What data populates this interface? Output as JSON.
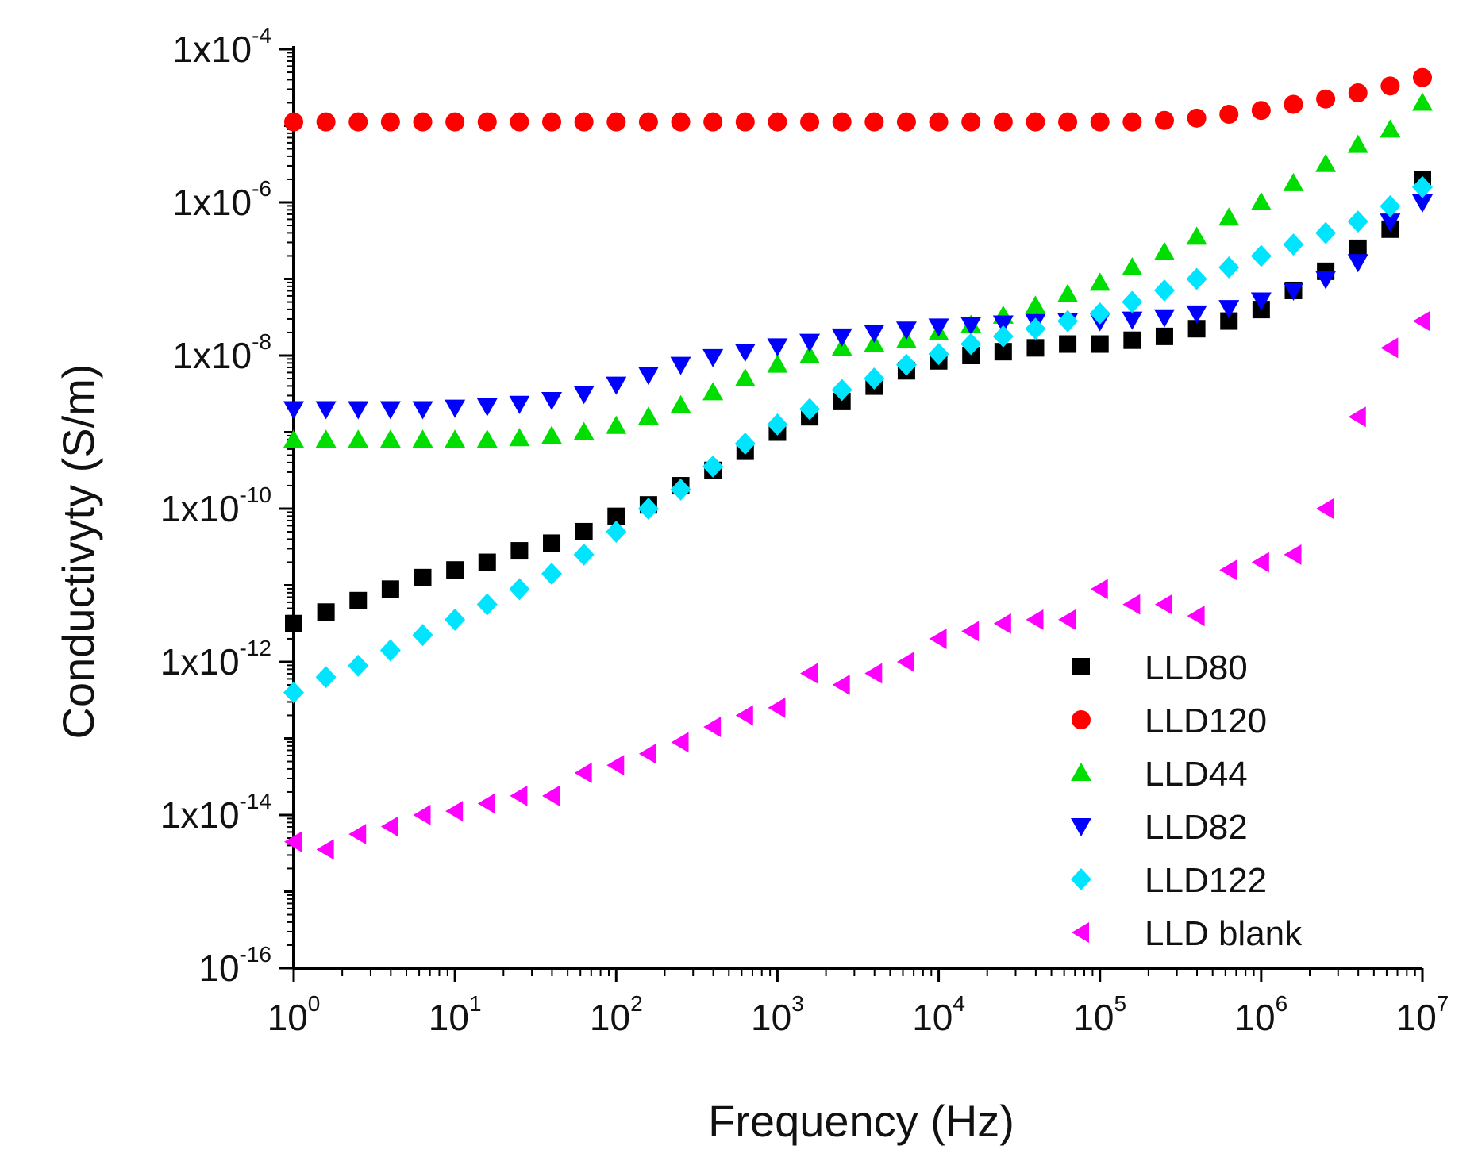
{
  "chart_data": {
    "type": "scatter",
    "title": "",
    "xlabel": "Frequency (Hz)",
    "ylabel": "Conductivyty (S/m)",
    "xscale": "log",
    "yscale": "log",
    "xlim": [
      1,
      10000000
    ],
    "ylim": [
      1e-16,
      0.0001
    ],
    "grid": false,
    "legend_position": "bottom-right",
    "x_ticks": [
      {
        "base": "10",
        "exp": "0"
      },
      {
        "base": "10",
        "exp": "1"
      },
      {
        "base": "10",
        "exp": "2"
      },
      {
        "base": "10",
        "exp": "3"
      },
      {
        "base": "10",
        "exp": "4"
      },
      {
        "base": "10",
        "exp": "5"
      },
      {
        "base": "10",
        "exp": "6"
      },
      {
        "base": "10",
        "exp": "7"
      }
    ],
    "y_ticks": [
      {
        "base": "10",
        "exp": "-16"
      },
      {
        "base": "1x10",
        "exp": "-14"
      },
      {
        "base": "1x10",
        "exp": "-12"
      },
      {
        "base": "1x10",
        "exp": "-10"
      },
      {
        "base": "1x10",
        "exp": "-8"
      },
      {
        "base": "1x10",
        "exp": "-6"
      },
      {
        "base": "1x10",
        "exp": "-4"
      }
    ],
    "series": [
      {
        "name": "LLD80",
        "marker": "square",
        "color": "#000000",
        "x_log10": [
          0,
          0.2,
          0.4,
          0.6,
          0.8,
          1.0,
          1.2,
          1.4,
          1.6,
          1.8,
          2.0,
          2.2,
          2.4,
          2.6,
          2.8,
          3.0,
          3.2,
          3.4,
          3.6,
          3.8,
          4.0,
          4.2,
          4.4,
          4.6,
          4.8,
          5.0,
          5.2,
          5.4,
          5.6,
          5.8,
          6.0,
          6.2,
          6.4,
          6.6,
          6.8,
          7.0
        ],
        "y_log10": [
          -11.5,
          -11.35,
          -11.2,
          -11.05,
          -10.9,
          -10.8,
          -10.7,
          -10.55,
          -10.45,
          -10.3,
          -10.1,
          -9.95,
          -9.7,
          -9.5,
          -9.25,
          -9.0,
          -8.8,
          -8.6,
          -8.4,
          -8.2,
          -8.07,
          -8.0,
          -7.95,
          -7.9,
          -7.85,
          -7.85,
          -7.8,
          -7.75,
          -7.65,
          -7.55,
          -7.4,
          -7.15,
          -6.9,
          -6.6,
          -6.35,
          -5.7
        ]
      },
      {
        "name": "LLD120",
        "marker": "circle",
        "color": "#ff0000",
        "x_log10": [
          0,
          0.2,
          0.4,
          0.6,
          0.8,
          1.0,
          1.2,
          1.4,
          1.6,
          1.8,
          2.0,
          2.2,
          2.4,
          2.6,
          2.8,
          3.0,
          3.2,
          3.4,
          3.6,
          3.8,
          4.0,
          4.2,
          4.4,
          4.6,
          4.8,
          5.0,
          5.2,
          5.4,
          5.6,
          5.8,
          6.0,
          6.2,
          6.4,
          6.6,
          6.8,
          7.0
        ],
        "y_log10": [
          -4.95,
          -4.95,
          -4.95,
          -4.95,
          -4.95,
          -4.95,
          -4.95,
          -4.95,
          -4.95,
          -4.95,
          -4.95,
          -4.95,
          -4.95,
          -4.95,
          -4.95,
          -4.95,
          -4.95,
          -4.95,
          -4.95,
          -4.95,
          -4.95,
          -4.95,
          -4.95,
          -4.95,
          -4.95,
          -4.95,
          -4.95,
          -4.93,
          -4.9,
          -4.85,
          -4.8,
          -4.72,
          -4.65,
          -4.57,
          -4.48,
          -4.37
        ]
      },
      {
        "name": "LLD44",
        "marker": "triangle-up",
        "color": "#00dd00",
        "x_log10": [
          0,
          0.2,
          0.4,
          0.6,
          0.8,
          1.0,
          1.2,
          1.4,
          1.6,
          1.8,
          2.0,
          2.2,
          2.4,
          2.6,
          2.8,
          3.0,
          3.2,
          3.4,
          3.6,
          3.8,
          4.0,
          4.2,
          4.4,
          4.6,
          4.8,
          5.0,
          5.2,
          5.4,
          5.6,
          5.8,
          6.0,
          6.2,
          6.4,
          6.6,
          6.8,
          7.0
        ],
        "y_log10": [
          -9.1,
          -9.1,
          -9.1,
          -9.1,
          -9.1,
          -9.1,
          -9.1,
          -9.08,
          -9.05,
          -9.0,
          -8.92,
          -8.8,
          -8.65,
          -8.48,
          -8.3,
          -8.12,
          -8.0,
          -7.9,
          -7.85,
          -7.8,
          -7.7,
          -7.6,
          -7.48,
          -7.35,
          -7.2,
          -7.05,
          -6.85,
          -6.65,
          -6.45,
          -6.2,
          -6.0,
          -5.75,
          -5.5,
          -5.25,
          -5.05,
          -4.7
        ]
      },
      {
        "name": "LLD82",
        "marker": "triangle-down",
        "color": "#0000ff",
        "x_log10": [
          0,
          0.2,
          0.4,
          0.6,
          0.8,
          1.0,
          1.2,
          1.4,
          1.6,
          1.8,
          2.0,
          2.2,
          2.4,
          2.6,
          2.8,
          3.0,
          3.2,
          3.4,
          3.6,
          3.8,
          4.0,
          4.2,
          4.4,
          4.6,
          4.8,
          5.0,
          5.2,
          5.4,
          5.6,
          5.8,
          6.0,
          6.2,
          6.4,
          6.6,
          6.8,
          7.0
        ],
        "y_log10": [
          -8.7,
          -8.7,
          -8.7,
          -8.7,
          -8.7,
          -8.68,
          -8.66,
          -8.63,
          -8.58,
          -8.5,
          -8.38,
          -8.25,
          -8.12,
          -8.02,
          -7.95,
          -7.88,
          -7.82,
          -7.75,
          -7.7,
          -7.66,
          -7.62,
          -7.6,
          -7.58,
          -7.56,
          -7.55,
          -7.55,
          -7.53,
          -7.5,
          -7.45,
          -7.38,
          -7.28,
          -7.15,
          -7.0,
          -6.78,
          -6.25,
          -6.0
        ]
      },
      {
        "name": "LLD122",
        "marker": "diamond",
        "color": "#00e5ff",
        "x_log10": [
          0,
          0.2,
          0.4,
          0.6,
          0.8,
          1.0,
          1.2,
          1.4,
          1.6,
          1.8,
          2.0,
          2.2,
          2.4,
          2.6,
          2.8,
          3.0,
          3.2,
          3.4,
          3.6,
          3.8,
          4.0,
          4.2,
          4.4,
          4.6,
          4.8,
          5.0,
          5.2,
          5.4,
          5.6,
          5.8,
          6.0,
          6.2,
          6.4,
          6.6,
          6.8,
          7.0
        ],
        "y_log10": [
          -12.4,
          -12.2,
          -12.05,
          -11.85,
          -11.65,
          -11.45,
          -11.25,
          -11.05,
          -10.85,
          -10.6,
          -10.3,
          -10.0,
          -9.75,
          -9.45,
          -9.15,
          -8.9,
          -8.7,
          -8.45,
          -8.3,
          -8.12,
          -7.98,
          -7.85,
          -7.75,
          -7.65,
          -7.55,
          -7.45,
          -7.3,
          -7.15,
          -7.0,
          -6.85,
          -6.7,
          -6.55,
          -6.4,
          -6.25,
          -6.05,
          -5.8
        ]
      },
      {
        "name": "LLD blank",
        "marker": "triangle-left",
        "color": "#ff00ff",
        "x_log10": [
          0,
          0.2,
          0.4,
          0.6,
          0.8,
          1.0,
          1.2,
          1.4,
          1.6,
          1.8,
          2.0,
          2.2,
          2.4,
          2.6,
          2.8,
          3.0,
          3.2,
          3.4,
          3.6,
          3.8,
          4.0,
          4.2,
          4.4,
          4.6,
          4.8,
          5.0,
          5.2,
          5.4,
          5.6,
          5.8,
          6.0,
          6.2,
          6.4,
          6.6,
          6.8,
          7.0
        ],
        "y_log10": [
          -14.35,
          -14.45,
          -14.25,
          -14.15,
          -14.0,
          -13.95,
          -13.85,
          -13.75,
          -13.75,
          -13.45,
          -13.35,
          -13.2,
          -13.05,
          -12.85,
          -12.7,
          -12.6,
          -12.15,
          -12.3,
          -12.15,
          -12.0,
          -11.7,
          -11.6,
          -11.5,
          -11.45,
          -11.45,
          -11.05,
          -11.25,
          -11.25,
          -11.4,
          -10.8,
          -10.7,
          -10.6,
          -10.0,
          -8.8,
          -7.9,
          -7.55
        ]
      }
    ]
  }
}
